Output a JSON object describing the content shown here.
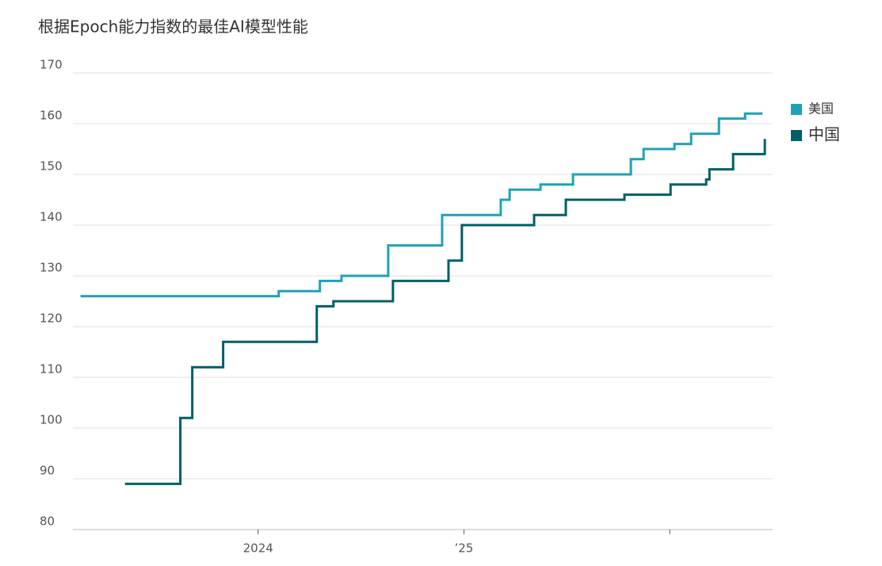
{
  "chart_data": {
    "type": "line",
    "step": "post",
    "title": "根据Epoch能力指数的最佳AI模型性能",
    "xlim": [
      2023.1,
      2026.5
    ],
    "xticks": [
      2024,
      {
        "value": 2025,
        "label": "’25"
      },
      {
        "value": 2026,
        "label": null
      }
    ],
    "ylim": [
      80,
      170
    ],
    "yticks": [
      80,
      90,
      100,
      110,
      120,
      130,
      140,
      150,
      160,
      170
    ],
    "grid": true,
    "legend": "right",
    "series": [
      {
        "name": "美国",
        "color": "#1ea2b6",
        "x": [
          2023.137,
          2024.1,
          2024.3,
          2024.405,
          2024.632,
          2024.894,
          2025.179,
          2025.222,
          2025.372,
          2025.53,
          2025.811,
          2025.873,
          2026.023,
          2026.104,
          2026.239,
          2026.366,
          2026.451
        ],
        "values": [
          126,
          127,
          129,
          130,
          136,
          142,
          145,
          147,
          148,
          150,
          153,
          155,
          156,
          158,
          161,
          162,
          162
        ]
      },
      {
        "name": "中国",
        "color": "#005f66",
        "x": [
          2023.353,
          2023.622,
          2023.68,
          2023.83,
          2024.285,
          2024.366,
          2024.655,
          2024.925,
          2024.99,
          2025.341,
          2025.495,
          2025.78,
          2026.004,
          2026.177,
          2026.193,
          2026.308,
          2026.462
        ],
        "values": [
          89,
          102,
          112,
          117,
          124,
          125,
          129,
          133,
          140,
          142,
          145,
          146,
          148,
          149,
          151,
          154,
          157
        ]
      }
    ]
  }
}
